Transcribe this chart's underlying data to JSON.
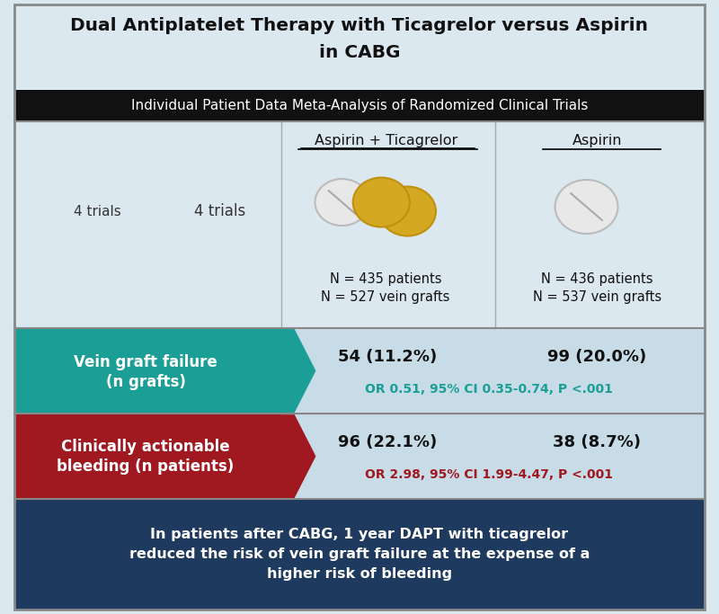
{
  "title_line1": "Dual Antiplatelet Therapy with Ticagrelor versus Aspirin",
  "title_line2": "in CABG",
  "subtitle": "Individual Patient Data Meta-Analysis of Randomized Clinical Trials",
  "trials_text": "4 trials",
  "col1_header": "Aspirin + Ticagrelor",
  "col2_header": "Aspirin",
  "col1_n1": "N = 435 patients",
  "col1_n2": "N = 527 vein grafts",
  "col2_n1": "N = 436 patients",
  "col2_n2": "N = 537 vein grafts",
  "row1_label1": "Vein graft failure",
  "row1_label2": "(n grafts)",
  "row1_val1": "54 (11.2%)",
  "row1_val2": "99 (20.0%)",
  "row1_or": "OR 0.51, 95% CI 0.35-0.74, P <.001",
  "row1_color": "#1a9e96",
  "row2_label1": "Clinically actionable",
  "row2_label2": "bleeding (n patients)",
  "row2_val1": "96 (22.1%)",
  "row2_val2": "38 (8.7%)",
  "row2_or": "OR 2.98, 95% CI 1.99-4.47, P <.001",
  "row2_color": "#a01820",
  "footer_line1": "In patients after CABG, 1 year DAPT with ticagrelor",
  "footer_line2": "reduced the risk of vein graft failure at the expense of a",
  "footer_line3": "higher risk of bleeding",
  "bg_color": "#dce8f0",
  "title_bg": "#dce8f0",
  "subtitle_bg": "#1a1a1a",
  "footer_bg": "#1e3a5f",
  "data_bg": "#c8dce8",
  "border_color": "#555555"
}
